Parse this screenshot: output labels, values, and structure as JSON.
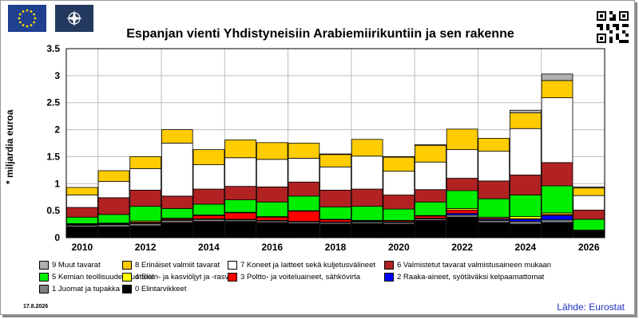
{
  "title": "Espanjan vienti Yhdistyneisiin Arabiemiirikuntiin ja sen rakenne",
  "date": "17.8.2026",
  "source": "Lähde: Eurostat",
  "colors": {
    "frame_border": "#9a9a9a",
    "eu_blue": "#1f3f8f",
    "source_blue": "#1f2fbf"
  },
  "icons": [
    "eu-flag-icon",
    "nato-flag-icon",
    "qr-code-icon"
  ],
  "chart_data": {
    "type": "bar",
    "stacked": true,
    "ylabel": "* miljardia euroa",
    "ylim": [
      0,
      3.5
    ],
    "yticks": [
      "0",
      "0.5",
      "1",
      "1.5",
      "2",
      "2.5",
      "3",
      "3.5"
    ],
    "ytick_values": [
      0,
      0.5,
      1,
      1.5,
      2,
      2.5,
      3,
      3.5
    ],
    "xtick_labels": [
      "2010",
      "2012",
      "2014",
      "2016",
      "2018",
      "2020",
      "2022",
      "2024",
      "2026"
    ],
    "categories": [
      "2010",
      "2011",
      "2012",
      "2013",
      "2014",
      "2015",
      "2016",
      "2017",
      "2018",
      "2019",
      "2020",
      "2021",
      "2022",
      "2023",
      "2024",
      "2025",
      "2026"
    ],
    "grid": true,
    "legend_position": "bottom",
    "series": [
      {
        "name": "0 Elintarvikkeet",
        "color": "#000000",
        "values": [
          0.2,
          0.2,
          0.22,
          0.28,
          0.3,
          0.3,
          0.28,
          0.26,
          0.25,
          0.26,
          0.25,
          0.32,
          0.38,
          0.28,
          0.25,
          0.28,
          0.1
        ]
      },
      {
        "name": "1 Juomat ja tupakka",
        "color": "#808080",
        "values": [
          0.03,
          0.04,
          0.04,
          0.04,
          0.04,
          0.03,
          0.03,
          0.03,
          0.03,
          0.03,
          0.03,
          0.03,
          0.04,
          0.04,
          0.05,
          0.05,
          0.01
        ]
      },
      {
        "name": "2 Raaka-aineet, syötäväksi kelpaamattomat",
        "color": "#0000ff",
        "values": [
          0.01,
          0.01,
          0.01,
          0.01,
          0.01,
          0.01,
          0.01,
          0.01,
          0.01,
          0.01,
          0.01,
          0.01,
          0.03,
          0.02,
          0.04,
          0.08,
          0.01
        ]
      },
      {
        "name": "3 Poltto- ja voiteluaineet, sähkövirta",
        "color": "#ff0000",
        "values": [
          0.01,
          0.01,
          0.02,
          0.02,
          0.06,
          0.12,
          0.06,
          0.19,
          0.04,
          0.01,
          0.02,
          0.04,
          0.06,
          0.02,
          0.01,
          0.02,
          0.01
        ]
      },
      {
        "name": "4 Eläin- ja kasviöljyt ja -rasvat",
        "color": "#ffff00",
        "values": [
          0.01,
          0.01,
          0.02,
          0.01,
          0.01,
          0.01,
          0.01,
          0.01,
          0.01,
          0.01,
          0.01,
          0.01,
          0.03,
          0.02,
          0.04,
          0.03,
          0.01
        ]
      },
      {
        "name": "5 Kemian teollisuuden tuotteet",
        "color": "#00ee00",
        "values": [
          0.12,
          0.16,
          0.27,
          0.18,
          0.2,
          0.23,
          0.27,
          0.27,
          0.23,
          0.26,
          0.21,
          0.25,
          0.33,
          0.34,
          0.4,
          0.5,
          0.2
        ]
      },
      {
        "name": "6 Valmistetut tavarat valmistusaineen mukaan",
        "color": "#b22222",
        "values": [
          0.18,
          0.31,
          0.3,
          0.23,
          0.28,
          0.25,
          0.28,
          0.26,
          0.31,
          0.32,
          0.26,
          0.23,
          0.23,
          0.33,
          0.37,
          0.43,
          0.17
        ]
      },
      {
        "name": "7 Koneet ja laitteet sekä kuljetusvälineet",
        "color": "#ffffff",
        "values": [
          0.23,
          0.3,
          0.4,
          0.98,
          0.45,
          0.53,
          0.51,
          0.44,
          0.43,
          0.61,
          0.44,
          0.51,
          0.53,
          0.55,
          0.86,
          1.2,
          0.27
        ]
      },
      {
        "name": "8 Erinäiset valmiit tavarat",
        "color": "#ffcc00",
        "values": [
          0.14,
          0.2,
          0.22,
          0.25,
          0.28,
          0.33,
          0.31,
          0.28,
          0.23,
          0.31,
          0.26,
          0.31,
          0.38,
          0.24,
          0.29,
          0.32,
          0.14
        ]
      },
      {
        "name": "9 Muut tavarat",
        "color": "#b0b0b0",
        "values": [
          0.0,
          0.0,
          0.0,
          0.0,
          0.0,
          0.0,
          0.0,
          0.0,
          0.01,
          0.0,
          0.01,
          0.01,
          0.0,
          0.0,
          0.05,
          0.12,
          0.02
        ]
      }
    ]
  },
  "legend": [
    {
      "label": "9 Muut tavarat",
      "color": "#b0b0b0"
    },
    {
      "label": "8 Erinäiset valmiit tavarat",
      "color": "#ffcc00"
    },
    {
      "label": "7 Koneet ja laitteet sekä kuljetusvälineet",
      "color": "#ffffff"
    },
    {
      "label": "6 Valmistetut tavarat valmistusaineen mukaan",
      "color": "#b22222"
    },
    {
      "label": "5 Kemian teollisuuden tuotteet",
      "color": "#00ee00"
    },
    {
      "label": "4 Eläin- ja kasviöljyt ja -rasvat",
      "color": "#ffff00"
    },
    {
      "label": "3 Poltto- ja voiteluaineet, sähkövirta",
      "color": "#ff0000"
    },
    {
      "label": "2 Raaka-aineet, syötäväksi kelpaamattomat",
      "color": "#0000ff"
    },
    {
      "label": "1 Juomat ja tupakka",
      "color": "#808080"
    },
    {
      "label": "0 Elintarvikkeet",
      "color": "#000000"
    }
  ]
}
